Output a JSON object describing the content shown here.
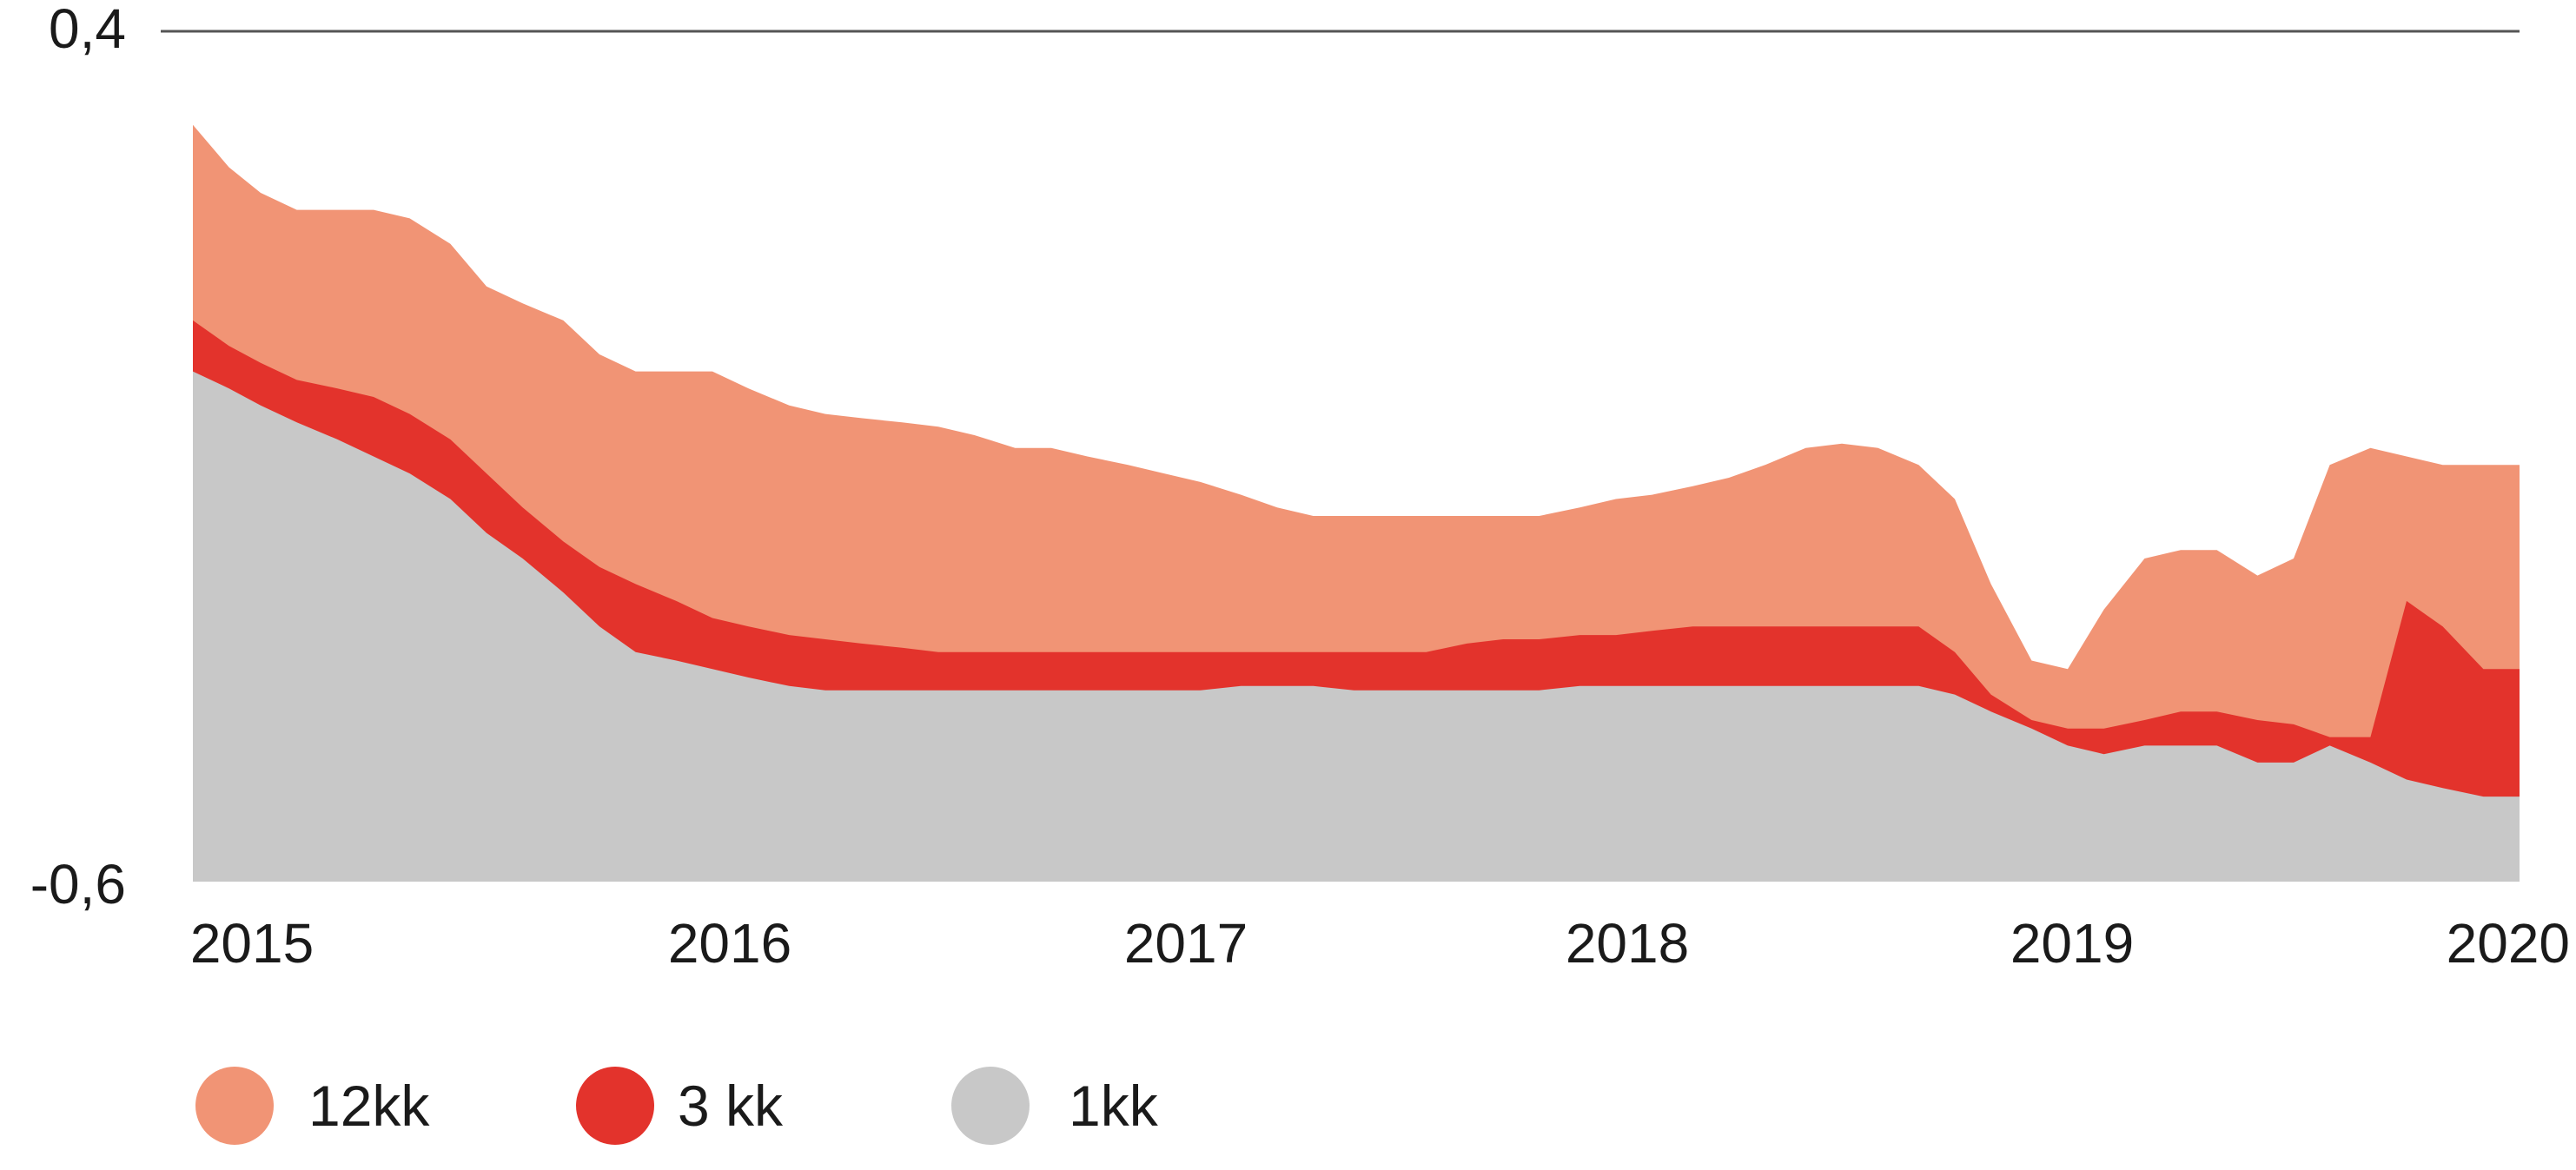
{
  "chart_data": {
    "type": "area",
    "stacked": false,
    "title": "",
    "xlabel": "",
    "ylabel": "",
    "ylim": [
      -0.6,
      0.4
    ],
    "y_ticks": [
      "0,4",
      "-0,6"
    ],
    "x_ticks": [
      "2015",
      "2016",
      "2017",
      "2018",
      "2019",
      "2020"
    ],
    "x_range": [
      2014.85,
      2020.0
    ],
    "grid": "top line only",
    "legend": "bottom",
    "series": [
      {
        "name": "12kk",
        "color": "#f19475",
        "x": [
          2014.85,
          2014.93,
          2015.0,
          2015.08,
          2015.17,
          2015.25,
          2015.33,
          2015.42,
          2015.5,
          2015.58,
          2015.67,
          2015.75,
          2015.83,
          2015.92,
          2016.0,
          2016.08,
          2016.17,
          2016.25,
          2016.33,
          2016.42,
          2016.5,
          2016.58,
          2016.67,
          2016.75,
          2016.83,
          2016.92,
          2017.0,
          2017.08,
          2017.17,
          2017.25,
          2017.33,
          2017.42,
          2017.5,
          2017.58,
          2017.67,
          2017.75,
          2017.83,
          2017.92,
          2018.0,
          2018.08,
          2018.17,
          2018.25,
          2018.33,
          2018.42,
          2018.5,
          2018.58,
          2018.67,
          2018.75,
          2018.83,
          2018.92,
          2019.0,
          2019.08,
          2019.17,
          2019.25,
          2019.33,
          2019.42,
          2019.5,
          2019.58,
          2019.67,
          2019.75,
          2019.83,
          2019.92,
          2020.0
        ],
        "values": [
          0.29,
          0.24,
          0.21,
          0.19,
          0.19,
          0.19,
          0.18,
          0.15,
          0.1,
          0.08,
          0.06,
          0.02,
          0.0,
          0.0,
          0.0,
          -0.02,
          -0.04,
          -0.05,
          -0.055,
          -0.06,
          -0.065,
          -0.075,
          -0.09,
          -0.09,
          -0.1,
          -0.11,
          -0.12,
          -0.13,
          -0.145,
          -0.16,
          -0.17,
          -0.17,
          -0.17,
          -0.17,
          -0.17,
          -0.17,
          -0.17,
          -0.16,
          -0.15,
          -0.145,
          -0.135,
          -0.125,
          -0.11,
          -0.09,
          -0.085,
          -0.09,
          -0.11,
          -0.15,
          -0.25,
          -0.34,
          -0.35,
          -0.28,
          -0.22,
          -0.21,
          -0.21,
          -0.24,
          -0.22,
          -0.11,
          -0.09,
          -0.1,
          -0.11,
          -0.11,
          -0.11
        ]
      },
      {
        "name": "3 kk",
        "color": "#e3332c",
        "x": [
          2014.85,
          2014.93,
          2015.0,
          2015.08,
          2015.17,
          2015.25,
          2015.33,
          2015.42,
          2015.5,
          2015.58,
          2015.67,
          2015.75,
          2015.83,
          2015.92,
          2016.0,
          2016.08,
          2016.17,
          2016.25,
          2016.33,
          2016.42,
          2016.5,
          2016.58,
          2016.67,
          2016.75,
          2016.83,
          2016.92,
          2017.0,
          2017.08,
          2017.17,
          2017.25,
          2017.33,
          2017.42,
          2017.5,
          2017.58,
          2017.67,
          2017.75,
          2017.83,
          2017.92,
          2018.0,
          2018.08,
          2018.17,
          2018.25,
          2018.33,
          2018.42,
          2018.5,
          2018.58,
          2018.67,
          2018.75,
          2018.83,
          2018.92,
          2019.0,
          2019.08,
          2019.17,
          2019.25,
          2019.33,
          2019.42,
          2019.5,
          2019.58,
          2019.67,
          2019.75,
          2019.83,
          2019.92,
          2020.0
        ],
        "values": [
          0.06,
          0.03,
          0.01,
          -0.01,
          -0.02,
          -0.03,
          -0.05,
          -0.08,
          -0.12,
          -0.16,
          -0.2,
          -0.23,
          -0.25,
          -0.27,
          -0.29,
          -0.3,
          -0.31,
          -0.315,
          -0.32,
          -0.325,
          -0.33,
          -0.33,
          -0.33,
          -0.33,
          -0.33,
          -0.33,
          -0.33,
          -0.33,
          -0.33,
          -0.33,
          -0.33,
          -0.33,
          -0.33,
          -0.33,
          -0.32,
          -0.315,
          -0.315,
          -0.31,
          -0.31,
          -0.305,
          -0.3,
          -0.3,
          -0.3,
          -0.3,
          -0.3,
          -0.3,
          -0.3,
          -0.33,
          -0.38,
          -0.41,
          -0.42,
          -0.42,
          -0.41,
          -0.4,
          -0.4,
          -0.41,
          -0.415,
          -0.43,
          -0.43,
          -0.27,
          -0.3,
          -0.35,
          -0.35
        ]
      },
      {
        "name": "1kk",
        "color": "#c8c8c8",
        "x": [
          2014.85,
          2014.93,
          2015.0,
          2015.08,
          2015.17,
          2015.25,
          2015.33,
          2015.42,
          2015.5,
          2015.58,
          2015.67,
          2015.75,
          2015.83,
          2015.92,
          2016.0,
          2016.08,
          2016.17,
          2016.25,
          2016.33,
          2016.42,
          2016.5,
          2016.58,
          2016.67,
          2016.75,
          2016.83,
          2016.92,
          2017.0,
          2017.08,
          2017.17,
          2017.25,
          2017.33,
          2017.42,
          2017.5,
          2017.58,
          2017.67,
          2017.75,
          2017.83,
          2017.92,
          2018.0,
          2018.08,
          2018.17,
          2018.25,
          2018.33,
          2018.42,
          2018.5,
          2018.58,
          2018.67,
          2018.75,
          2018.83,
          2018.92,
          2019.0,
          2019.08,
          2019.17,
          2019.25,
          2019.33,
          2019.42,
          2019.5,
          2019.58,
          2019.67,
          2019.75,
          2019.83,
          2019.92,
          2020.0
        ],
        "values": [
          0.0,
          -0.02,
          -0.04,
          -0.06,
          -0.08,
          -0.1,
          -0.12,
          -0.15,
          -0.19,
          -0.22,
          -0.26,
          -0.3,
          -0.33,
          -0.34,
          -0.35,
          -0.36,
          -0.37,
          -0.375,
          -0.375,
          -0.375,
          -0.375,
          -0.375,
          -0.375,
          -0.375,
          -0.375,
          -0.375,
          -0.375,
          -0.375,
          -0.37,
          -0.37,
          -0.37,
          -0.375,
          -0.375,
          -0.375,
          -0.375,
          -0.375,
          -0.375,
          -0.37,
          -0.37,
          -0.37,
          -0.37,
          -0.37,
          -0.37,
          -0.37,
          -0.37,
          -0.37,
          -0.37,
          -0.38,
          -0.4,
          -0.42,
          -0.44,
          -0.45,
          -0.44,
          -0.44,
          -0.44,
          -0.46,
          -0.46,
          -0.44,
          -0.46,
          -0.48,
          -0.49,
          -0.5,
          -0.5
        ]
      }
    ]
  }
}
